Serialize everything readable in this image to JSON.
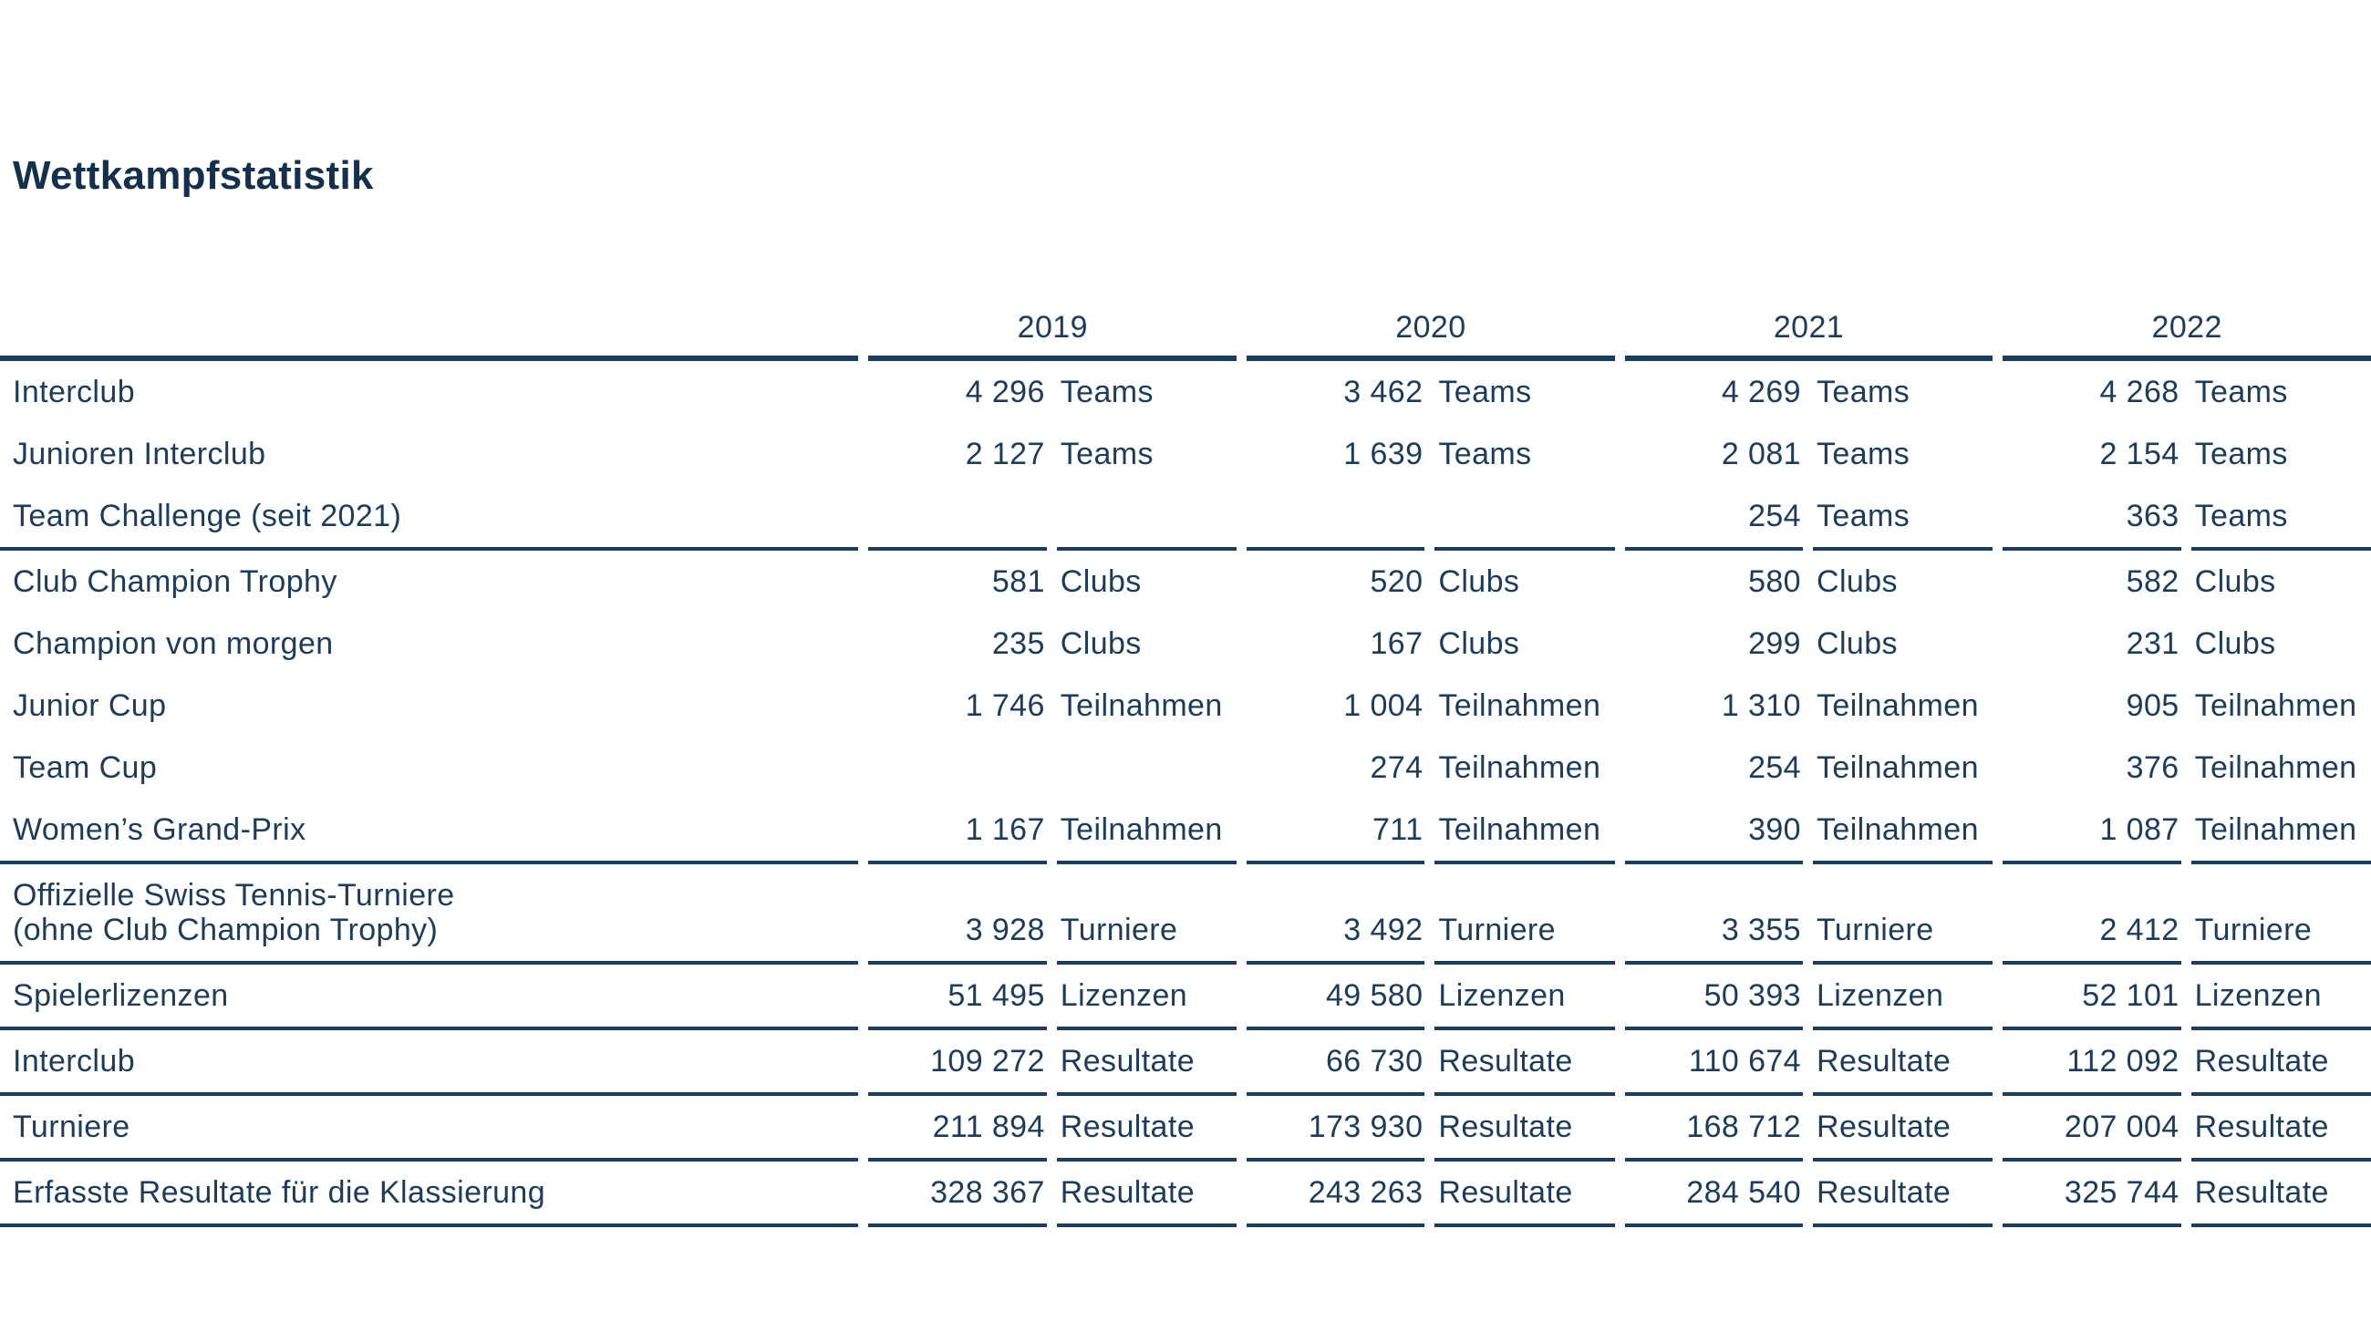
{
  "title": "Wettkampfstatistik",
  "colors": {
    "text": "#1e3c58",
    "title": "#14304b",
    "rule": "#1b3c5c",
    "background": "#ffffff"
  },
  "table": {
    "years": [
      "2019",
      "2020",
      "2021",
      "2022"
    ],
    "rows": [
      {
        "label_lines": [
          "Interclub"
        ],
        "rule_below": false,
        "values": [
          {
            "num": "4 296",
            "unit": "Teams"
          },
          {
            "num": "3 462",
            "unit": "Teams"
          },
          {
            "num": "4 269",
            "unit": "Teams"
          },
          {
            "num": "4 268",
            "unit": "Teams"
          }
        ]
      },
      {
        "label_lines": [
          "Junioren Interclub"
        ],
        "rule_below": false,
        "values": [
          {
            "num": "2 127",
            "unit": "Teams"
          },
          {
            "num": "1 639",
            "unit": "Teams"
          },
          {
            "num": "2 081",
            "unit": "Teams"
          },
          {
            "num": "2 154",
            "unit": "Teams"
          }
        ]
      },
      {
        "label_lines": [
          "Team Challenge (seit 2021)"
        ],
        "rule_below": true,
        "values": [
          {
            "num": "",
            "unit": ""
          },
          {
            "num": "",
            "unit": ""
          },
          {
            "num": "254",
            "unit": "Teams"
          },
          {
            "num": "363",
            "unit": "Teams"
          }
        ]
      },
      {
        "label_lines": [
          "Club Champion Trophy"
        ],
        "rule_below": false,
        "values": [
          {
            "num": "581",
            "unit": "Clubs"
          },
          {
            "num": "520",
            "unit": "Clubs"
          },
          {
            "num": "580",
            "unit": "Clubs"
          },
          {
            "num": "582",
            "unit": "Clubs"
          }
        ]
      },
      {
        "label_lines": [
          "Champion von morgen"
        ],
        "rule_below": false,
        "values": [
          {
            "num": "235",
            "unit": "Clubs"
          },
          {
            "num": "167",
            "unit": "Clubs"
          },
          {
            "num": "299",
            "unit": "Clubs"
          },
          {
            "num": "231",
            "unit": "Clubs"
          }
        ]
      },
      {
        "label_lines": [
          "Junior Cup"
        ],
        "rule_below": false,
        "values": [
          {
            "num": "1 746",
            "unit": "Teilnahmen"
          },
          {
            "num": "1 004",
            "unit": "Teilnahmen"
          },
          {
            "num": "1 310",
            "unit": "Teilnahmen"
          },
          {
            "num": "905",
            "unit": "Teilnahmen"
          }
        ]
      },
      {
        "label_lines": [
          "Team Cup"
        ],
        "rule_below": false,
        "values": [
          {
            "num": "",
            "unit": ""
          },
          {
            "num": "274",
            "unit": "Teilnahmen"
          },
          {
            "num": "254",
            "unit": "Teilnahmen"
          },
          {
            "num": "376",
            "unit": "Teilnahmen"
          }
        ]
      },
      {
        "label_lines": [
          "Women’s Grand-Prix"
        ],
        "rule_below": true,
        "values": [
          {
            "num": "1 167",
            "unit": "Teilnahmen"
          },
          {
            "num": "711",
            "unit": "Teilnahmen"
          },
          {
            "num": "390",
            "unit": "Teilnahmen"
          },
          {
            "num": "1 087",
            "unit": "Teilnahmen"
          }
        ]
      },
      {
        "label_lines": [
          "Offizielle Swiss Tennis-Turniere",
          "(ohne Club Champion Trophy)"
        ],
        "rule_below": true,
        "values": [
          {
            "num": "3 928",
            "unit": "Turniere"
          },
          {
            "num": "3 492",
            "unit": "Turniere"
          },
          {
            "num": "3 355",
            "unit": "Turniere"
          },
          {
            "num": "2 412",
            "unit": "Turniere"
          }
        ]
      },
      {
        "label_lines": [
          "Spielerlizenzen"
        ],
        "rule_below": true,
        "values": [
          {
            "num": "51 495",
            "unit": "Lizenzen"
          },
          {
            "num": "49 580",
            "unit": "Lizenzen"
          },
          {
            "num": "50 393",
            "unit": "Lizenzen"
          },
          {
            "num": "52 101",
            "unit": "Lizenzen"
          }
        ]
      },
      {
        "label_lines": [
          "Interclub"
        ],
        "rule_below": true,
        "values": [
          {
            "num": "109 272",
            "unit": "Resultate"
          },
          {
            "num": "66 730",
            "unit": "Resultate"
          },
          {
            "num": "110 674",
            "unit": "Resultate"
          },
          {
            "num": "112 092",
            "unit": "Resultate"
          }
        ]
      },
      {
        "label_lines": [
          "Turniere"
        ],
        "rule_below": true,
        "values": [
          {
            "num": "211 894",
            "unit": "Resultate"
          },
          {
            "num": "173 930",
            "unit": "Resultate"
          },
          {
            "num": "168 712",
            "unit": "Resultate"
          },
          {
            "num": "207 004",
            "unit": "Resultate"
          }
        ]
      },
      {
        "label_lines": [
          "Erfasste Resultate für die Klassierung"
        ],
        "rule_below": true,
        "values": [
          {
            "num": "328 367",
            "unit": "Resultate"
          },
          {
            "num": "243 263",
            "unit": "Resultate"
          },
          {
            "num": "284 540",
            "unit": "Resultate"
          },
          {
            "num": "325 744",
            "unit": "Resultate"
          }
        ]
      }
    ]
  }
}
